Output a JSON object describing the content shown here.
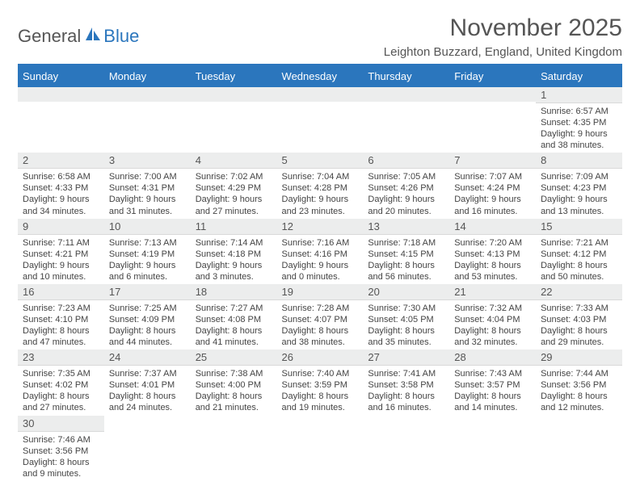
{
  "logo": {
    "general": "General",
    "blue": "Blue"
  },
  "title": "November 2025",
  "location": "Leighton Buzzard, England, United Kingdom",
  "colors": {
    "accent": "#2b76bd",
    "header_bg": "#2b76bd",
    "header_text": "#ffffff",
    "daynum_bg": "#eceded",
    "text": "#444444",
    "title_text": "#555555"
  },
  "weekdays": [
    "Sunday",
    "Monday",
    "Tuesday",
    "Wednesday",
    "Thursday",
    "Friday",
    "Saturday"
  ],
  "weeks": [
    [
      null,
      null,
      null,
      null,
      null,
      null,
      {
        "n": "1",
        "sr": "6:57 AM",
        "ss": "4:35 PM",
        "dl": "9 hours and 38 minutes."
      }
    ],
    [
      {
        "n": "2",
        "sr": "6:58 AM",
        "ss": "4:33 PM",
        "dl": "9 hours and 34 minutes."
      },
      {
        "n": "3",
        "sr": "7:00 AM",
        "ss": "4:31 PM",
        "dl": "9 hours and 31 minutes."
      },
      {
        "n": "4",
        "sr": "7:02 AM",
        "ss": "4:29 PM",
        "dl": "9 hours and 27 minutes."
      },
      {
        "n": "5",
        "sr": "7:04 AM",
        "ss": "4:28 PM",
        "dl": "9 hours and 23 minutes."
      },
      {
        "n": "6",
        "sr": "7:05 AM",
        "ss": "4:26 PM",
        "dl": "9 hours and 20 minutes."
      },
      {
        "n": "7",
        "sr": "7:07 AM",
        "ss": "4:24 PM",
        "dl": "9 hours and 16 minutes."
      },
      {
        "n": "8",
        "sr": "7:09 AM",
        "ss": "4:23 PM",
        "dl": "9 hours and 13 minutes."
      }
    ],
    [
      {
        "n": "9",
        "sr": "7:11 AM",
        "ss": "4:21 PM",
        "dl": "9 hours and 10 minutes."
      },
      {
        "n": "10",
        "sr": "7:13 AM",
        "ss": "4:19 PM",
        "dl": "9 hours and 6 minutes."
      },
      {
        "n": "11",
        "sr": "7:14 AM",
        "ss": "4:18 PM",
        "dl": "9 hours and 3 minutes."
      },
      {
        "n": "12",
        "sr": "7:16 AM",
        "ss": "4:16 PM",
        "dl": "9 hours and 0 minutes."
      },
      {
        "n": "13",
        "sr": "7:18 AM",
        "ss": "4:15 PM",
        "dl": "8 hours and 56 minutes."
      },
      {
        "n": "14",
        "sr": "7:20 AM",
        "ss": "4:13 PM",
        "dl": "8 hours and 53 minutes."
      },
      {
        "n": "15",
        "sr": "7:21 AM",
        "ss": "4:12 PM",
        "dl": "8 hours and 50 minutes."
      }
    ],
    [
      {
        "n": "16",
        "sr": "7:23 AM",
        "ss": "4:10 PM",
        "dl": "8 hours and 47 minutes."
      },
      {
        "n": "17",
        "sr": "7:25 AM",
        "ss": "4:09 PM",
        "dl": "8 hours and 44 minutes."
      },
      {
        "n": "18",
        "sr": "7:27 AM",
        "ss": "4:08 PM",
        "dl": "8 hours and 41 minutes."
      },
      {
        "n": "19",
        "sr": "7:28 AM",
        "ss": "4:07 PM",
        "dl": "8 hours and 38 minutes."
      },
      {
        "n": "20",
        "sr": "7:30 AM",
        "ss": "4:05 PM",
        "dl": "8 hours and 35 minutes."
      },
      {
        "n": "21",
        "sr": "7:32 AM",
        "ss": "4:04 PM",
        "dl": "8 hours and 32 minutes."
      },
      {
        "n": "22",
        "sr": "7:33 AM",
        "ss": "4:03 PM",
        "dl": "8 hours and 29 minutes."
      }
    ],
    [
      {
        "n": "23",
        "sr": "7:35 AM",
        "ss": "4:02 PM",
        "dl": "8 hours and 27 minutes."
      },
      {
        "n": "24",
        "sr": "7:37 AM",
        "ss": "4:01 PM",
        "dl": "8 hours and 24 minutes."
      },
      {
        "n": "25",
        "sr": "7:38 AM",
        "ss": "4:00 PM",
        "dl": "8 hours and 21 minutes."
      },
      {
        "n": "26",
        "sr": "7:40 AM",
        "ss": "3:59 PM",
        "dl": "8 hours and 19 minutes."
      },
      {
        "n": "27",
        "sr": "7:41 AM",
        "ss": "3:58 PM",
        "dl": "8 hours and 16 minutes."
      },
      {
        "n": "28",
        "sr": "7:43 AM",
        "ss": "3:57 PM",
        "dl": "8 hours and 14 minutes."
      },
      {
        "n": "29",
        "sr": "7:44 AM",
        "ss": "3:56 PM",
        "dl": "8 hours and 12 minutes."
      }
    ],
    [
      {
        "n": "30",
        "sr": "7:46 AM",
        "ss": "3:56 PM",
        "dl": "8 hours and 9 minutes."
      },
      null,
      null,
      null,
      null,
      null,
      null
    ]
  ],
  "labels": {
    "sunrise": "Sunrise:",
    "sunset": "Sunset:",
    "daylight": "Daylight:"
  }
}
